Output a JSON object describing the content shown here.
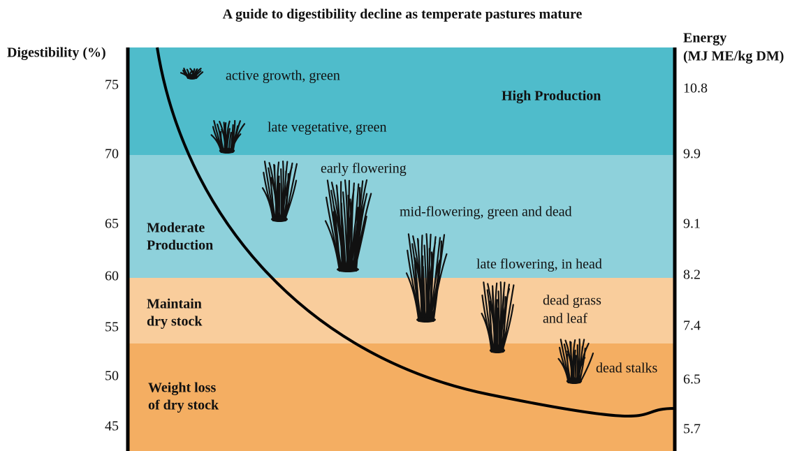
{
  "title": "A guide to digestibility decline as temperate pastures mature",
  "left_axis": {
    "label": "Digestibility (%)",
    "ticks": [
      "75",
      "70",
      "65",
      "60",
      "55",
      "50",
      "45"
    ]
  },
  "right_axis": {
    "label": [
      "Energy",
      "(MJ ME/kg DM)"
    ],
    "ticks": [
      "10.8",
      "9.9",
      "9.1",
      "8.2",
      "7.4",
      "6.5",
      "5.7"
    ]
  },
  "zones": [
    {
      "label": [
        "High Production"
      ]
    },
    {
      "label": [
        "Moderate",
        "Production"
      ]
    },
    {
      "label": [
        "Maintain",
        "dry stock"
      ]
    },
    {
      "label": [
        "Weight loss",
        "of dry stock"
      ]
    }
  ],
  "stages": [
    {
      "label": [
        "active growth, green"
      ]
    },
    {
      "label": [
        "late vegetative, green"
      ]
    },
    {
      "label": [
        "early flowering"
      ]
    },
    {
      "label": [
        "mid-flowering, green and dead"
      ]
    },
    {
      "label": [
        "late flowering, in head"
      ]
    },
    {
      "label": [
        "dead grass",
        "and leaf"
      ]
    },
    {
      "label": [
        "dead stalks"
      ]
    }
  ]
}
